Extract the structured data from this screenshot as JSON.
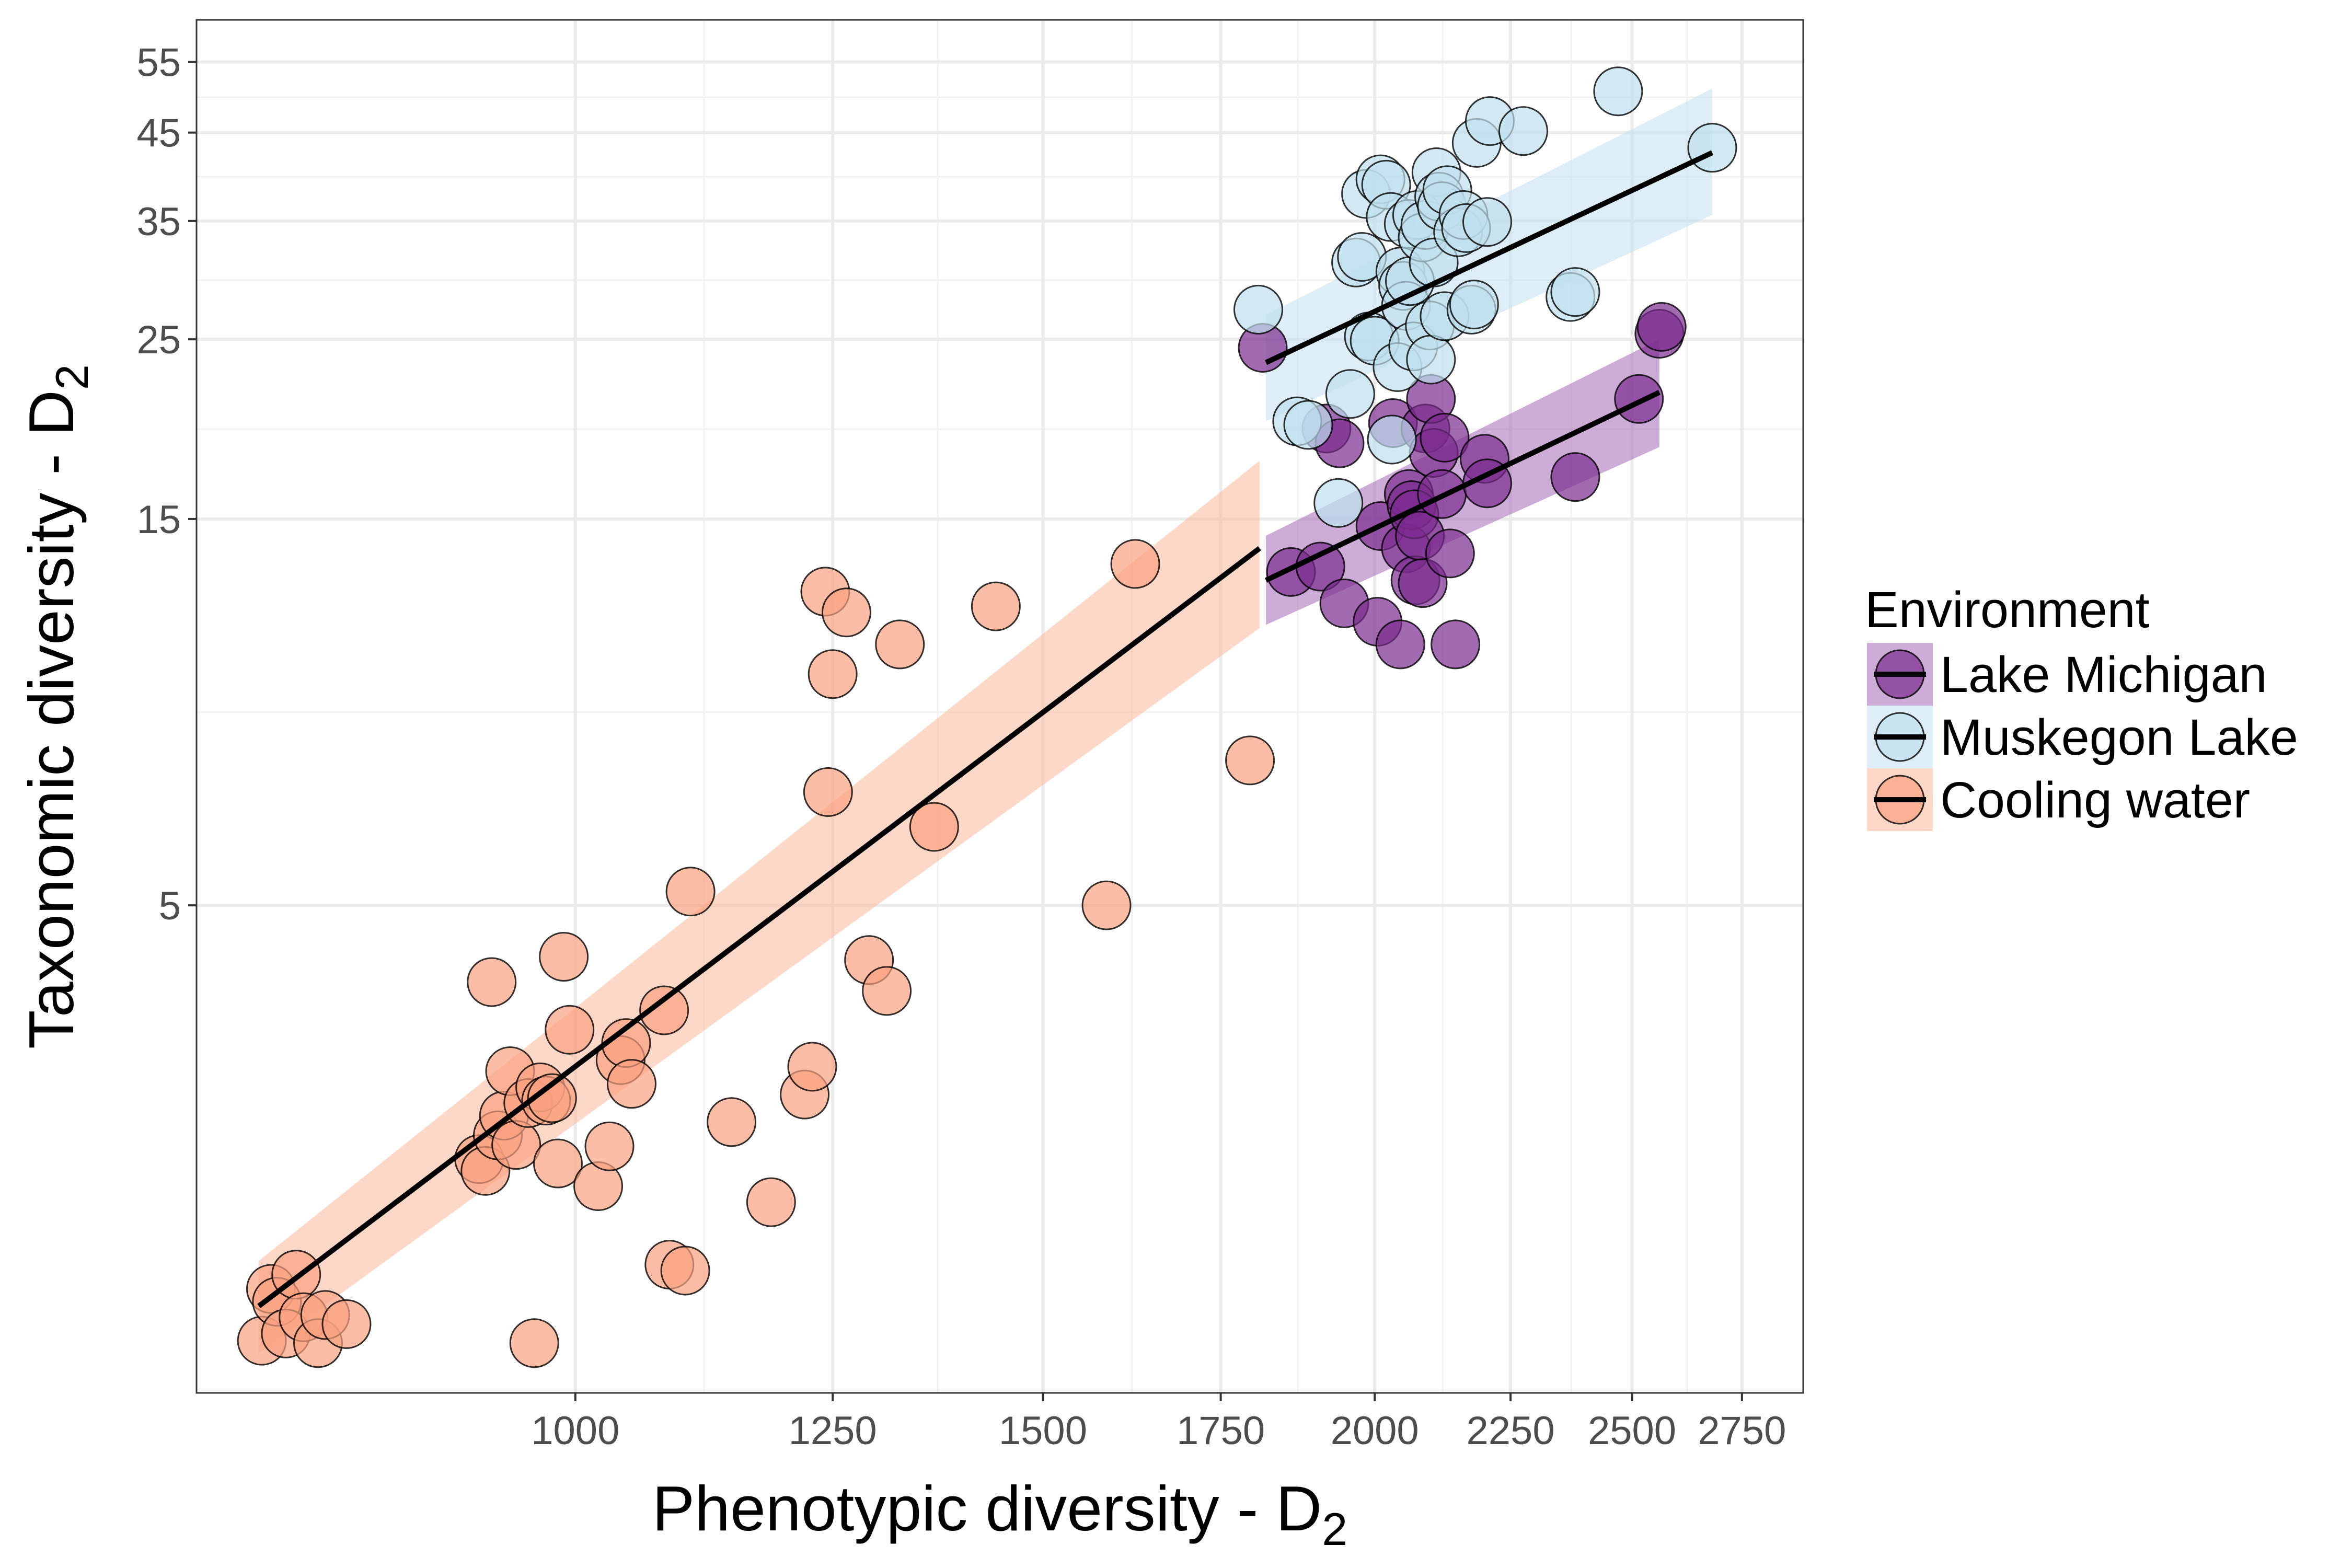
{
  "chart_data": {
    "type": "scatter",
    "xlabel": "Phenotypic diversity - D",
    "xlabel_subscript": "2",
    "ylabel": "Taxonomic diversity - D",
    "ylabel_subscript": "2",
    "x_scale": "log",
    "y_scale": "log",
    "xlim": [
      720,
      2900
    ],
    "ylim": [
      1.25,
      62
    ],
    "x_ticks": [
      1000,
      1250,
      1500,
      1750,
      2000,
      2250,
      2500,
      2750
    ],
    "x_tick_labels": [
      "1000",
      "1250",
      "1500",
      "1750",
      "2000",
      "2250",
      "2500",
      "2750"
    ],
    "y_ticks": [
      5,
      15,
      25,
      35,
      45,
      55
    ],
    "y_tick_labels": [
      "5",
      "15",
      "25",
      "35",
      "45",
      "55"
    ],
    "grid": true,
    "legend": {
      "title": "Environment",
      "position": "right"
    },
    "series": [
      {
        "name": "Lake Michigan",
        "color": "#7b2b8f",
        "ribbon_color": "#a469b8",
        "fit": {
          "x": [
            1820,
            2560
          ],
          "y": [
            12.6,
            21.5
          ]
        },
        "ribbon": {
          "x": [
            1820,
            2560
          ],
          "lower": [
            11.1,
            18.4
          ],
          "upper": [
            14.3,
            25.0
          ]
        },
        "points": [
          {
            "x": 1815,
            "y": 24.4
          },
          {
            "x": 1860,
            "y": 12.9
          },
          {
            "x": 1908,
            "y": 13.1
          },
          {
            "x": 1918,
            "y": 19.4
          },
          {
            "x": 1940,
            "y": 18.6
          },
          {
            "x": 1948,
            "y": 11.8
          },
          {
            "x": 2005,
            "y": 11.2
          },
          {
            "x": 2010,
            "y": 14.7
          },
          {
            "x": 2032,
            "y": 19.7
          },
          {
            "x": 2045,
            "y": 10.5
          },
          {
            "x": 2055,
            "y": 13.8
          },
          {
            "x": 2060,
            "y": 16.1
          },
          {
            "x": 2065,
            "y": 15.6
          },
          {
            "x": 2070,
            "y": 15.2
          },
          {
            "x": 2072,
            "y": 12.6
          },
          {
            "x": 2080,
            "y": 14.3
          },
          {
            "x": 2085,
            "y": 12.5
          },
          {
            "x": 2090,
            "y": 19.4
          },
          {
            "x": 2100,
            "y": 21.1
          },
          {
            "x": 2105,
            "y": 18.1
          },
          {
            "x": 2120,
            "y": 16.1
          },
          {
            "x": 2125,
            "y": 18.9
          },
          {
            "x": 2135,
            "y": 13.6
          },
          {
            "x": 2145,
            "y": 10.5
          },
          {
            "x": 2200,
            "y": 17.8
          },
          {
            "x": 2205,
            "y": 16.6
          },
          {
            "x": 2380,
            "y": 16.9
          },
          {
            "x": 2515,
            "y": 21.1
          },
          {
            "x": 2560,
            "y": 25.4
          },
          {
            "x": 2565,
            "y": 25.9
          }
        ]
      },
      {
        "name": "Muskegon Lake",
        "color": "#bfdfee",
        "ribbon_color": "#c5e0ee",
        "fit": {
          "x": [
            1820,
            2680
          ],
          "y": [
            23.4,
            42.5
          ]
        },
        "ribbon": {
          "x": [
            1820,
            2680
          ],
          "lower": [
            19.8,
            35.6
          ],
          "upper": [
            26.8,
            51.0
          ]
        },
        "points": [
          {
            "x": 1808,
            "y": 27.2
          },
          {
            "x": 1870,
            "y": 19.8
          },
          {
            "x": 1888,
            "y": 19.6
          },
          {
            "x": 1938,
            "y": 15.7
          },
          {
            "x": 1958,
            "y": 21.4
          },
          {
            "x": 1968,
            "y": 31.1
          },
          {
            "x": 1978,
            "y": 31.6
          },
          {
            "x": 1985,
            "y": 37.8
          },
          {
            "x": 1990,
            "y": 25.2
          },
          {
            "x": 2000,
            "y": 24.9
          },
          {
            "x": 2010,
            "y": 39.4
          },
          {
            "x": 2020,
            "y": 38.8
          },
          {
            "x": 2028,
            "y": 35.4
          },
          {
            "x": 2030,
            "y": 18.8
          },
          {
            "x": 2040,
            "y": 23.1
          },
          {
            "x": 2045,
            "y": 30.3
          },
          {
            "x": 2050,
            "y": 29.1
          },
          {
            "x": 2055,
            "y": 27.5
          },
          {
            "x": 2060,
            "y": 34.7
          },
          {
            "x": 2062,
            "y": 29.5
          },
          {
            "x": 2068,
            "y": 24.5
          },
          {
            "x": 2075,
            "y": 35.6
          },
          {
            "x": 2085,
            "y": 33.4
          },
          {
            "x": 2090,
            "y": 34.6
          },
          {
            "x": 2098,
            "y": 26.0
          },
          {
            "x": 2100,
            "y": 23.6
          },
          {
            "x": 2105,
            "y": 31.1
          },
          {
            "x": 2110,
            "y": 40.2
          },
          {
            "x": 2115,
            "y": 37.5
          },
          {
            "x": 2120,
            "y": 36.5
          },
          {
            "x": 2125,
            "y": 26.7
          },
          {
            "x": 2130,
            "y": 38.2
          },
          {
            "x": 2150,
            "y": 33.9
          },
          {
            "x": 2160,
            "y": 35.6
          },
          {
            "x": 2165,
            "y": 34.3
          },
          {
            "x": 2175,
            "y": 27.2
          },
          {
            "x": 2180,
            "y": 27.6
          },
          {
            "x": 2185,
            "y": 43.7
          },
          {
            "x": 2205,
            "y": 34.9
          },
          {
            "x": 2210,
            "y": 46.5
          },
          {
            "x": 2275,
            "y": 45.2
          },
          {
            "x": 2370,
            "y": 28.2
          },
          {
            "x": 2380,
            "y": 28.6
          },
          {
            "x": 2470,
            "y": 50.6
          },
          {
            "x": 2680,
            "y": 43.1
          }
        ]
      },
      {
        "name": "Cooling water",
        "color": "#f9a180",
        "ribbon_color": "#fbb79b",
        "fit": {
          "x": [
            760,
            1810
          ],
          "y": [
            1.6,
            13.8
          ]
        },
        "ribbon": {
          "x": [
            760,
            1810
          ],
          "lower": [
            1.4,
            11.0
          ],
          "upper": [
            1.82,
            17.7
          ]
        },
        "points": [
          {
            "x": 762,
            "y": 1.45
          },
          {
            "x": 768,
            "y": 1.68
          },
          {
            "x": 772,
            "y": 1.62
          },
          {
            "x": 778,
            "y": 1.48
          },
          {
            "x": 785,
            "y": 1.75
          },
          {
            "x": 790,
            "y": 1.55
          },
          {
            "x": 800,
            "y": 1.44
          },
          {
            "x": 805,
            "y": 1.56
          },
          {
            "x": 820,
            "y": 1.52
          },
          {
            "x": 920,
            "y": 2.43
          },
          {
            "x": 925,
            "y": 2.35
          },
          {
            "x": 930,
            "y": 4.02
          },
          {
            "x": 935,
            "y": 2.6
          },
          {
            "x": 940,
            "y": 2.75
          },
          {
            "x": 945,
            "y": 3.12
          },
          {
            "x": 950,
            "y": 2.53
          },
          {
            "x": 960,
            "y": 2.85
          },
          {
            "x": 965,
            "y": 1.44
          },
          {
            "x": 970,
            "y": 2.98
          },
          {
            "x": 975,
            "y": 2.87
          },
          {
            "x": 980,
            "y": 2.89
          },
          {
            "x": 985,
            "y": 2.4
          },
          {
            "x": 990,
            "y": 4.32
          },
          {
            "x": 995,
            "y": 3.51
          },
          {
            "x": 1020,
            "y": 2.25
          },
          {
            "x": 1030,
            "y": 2.52
          },
          {
            "x": 1040,
            "y": 3.22
          },
          {
            "x": 1045,
            "y": 3.38
          },
          {
            "x": 1050,
            "y": 3.01
          },
          {
            "x": 1080,
            "y": 3.71
          },
          {
            "x": 1085,
            "y": 1.8
          },
          {
            "x": 1100,
            "y": 1.77
          },
          {
            "x": 1105,
            "y": 5.2
          },
          {
            "x": 1145,
            "y": 2.7
          },
          {
            "x": 1185,
            "y": 2.15
          },
          {
            "x": 1220,
            "y": 2.92
          },
          {
            "x": 1228,
            "y": 3.16
          },
          {
            "x": 1242,
            "y": 12.2
          },
          {
            "x": 1245,
            "y": 6.9
          },
          {
            "x": 1250,
            "y": 9.65
          },
          {
            "x": 1265,
            "y": 11.5
          },
          {
            "x": 1290,
            "y": 4.28
          },
          {
            "x": 1310,
            "y": 3.92
          },
          {
            "x": 1325,
            "y": 10.5
          },
          {
            "x": 1365,
            "y": 6.25
          },
          {
            "x": 1440,
            "y": 11.7
          },
          {
            "x": 1585,
            "y": 5.0
          },
          {
            "x": 1625,
            "y": 13.2
          },
          {
            "x": 1795,
            "y": 7.55
          }
        ]
      }
    ]
  }
}
